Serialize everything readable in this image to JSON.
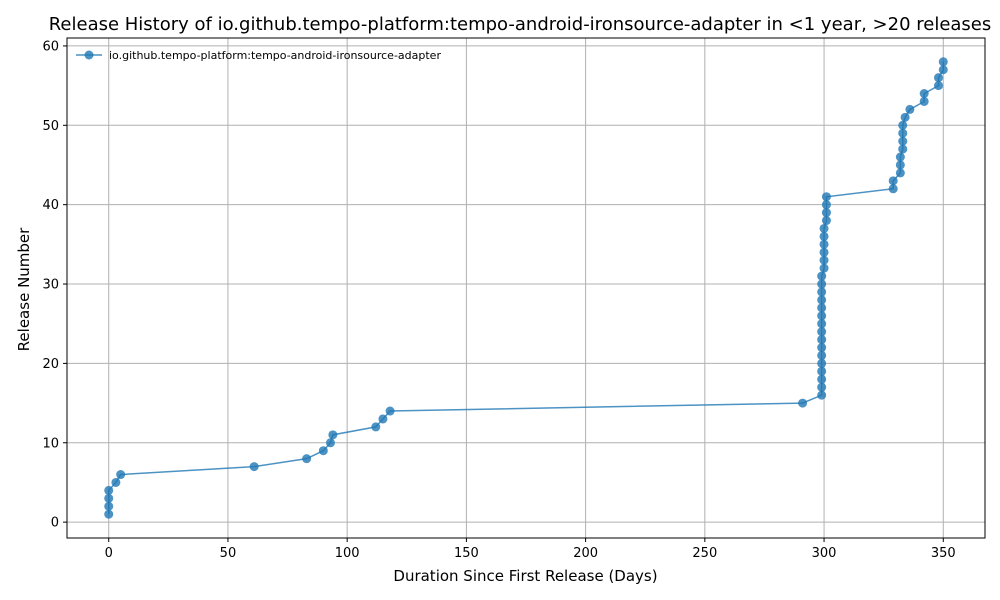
{
  "chart_data": {
    "type": "line",
    "title": "Release History of io.github.tempo-platform:tempo-android-ironsource-adapter in <1 year, >20 releases",
    "xlabel": "Duration Since First Release (Days)",
    "ylabel": "Release Number",
    "xlim": [
      -17.5,
      367.5
    ],
    "ylim": [
      -2,
      61
    ],
    "xticks": [
      0,
      50,
      100,
      150,
      200,
      250,
      300,
      350
    ],
    "yticks": [
      0,
      10,
      20,
      30,
      40,
      50,
      60
    ],
    "grid": true,
    "legend_position": "top-left",
    "series": [
      {
        "name": "io.github.tempo-platform:tempo-android-ironsource-adapter",
        "color": "#1f77b4",
        "marker": "circle",
        "x": [
          0,
          0,
          0,
          0,
          3,
          5,
          61,
          83,
          90,
          93,
          94,
          112,
          115,
          118,
          291,
          299,
          299,
          299,
          299,
          299,
          299,
          299,
          299,
          299,
          299,
          299,
          299,
          299,
          299,
          299,
          299,
          300,
          300,
          300,
          300,
          300,
          300,
          301,
          301,
          301,
          301,
          329,
          329,
          332,
          332,
          332,
          333,
          333,
          333,
          333,
          334,
          336,
          342,
          342,
          348,
          348,
          350,
          350
        ],
        "y": [
          1,
          2,
          3,
          4,
          5,
          6,
          7,
          8,
          9,
          10,
          11,
          12,
          13,
          14,
          15,
          16,
          17,
          18,
          19,
          20,
          21,
          22,
          23,
          24,
          25,
          26,
          27,
          28,
          29,
          30,
          31,
          32,
          33,
          34,
          35,
          36,
          37,
          38,
          39,
          40,
          41,
          42,
          43,
          44,
          45,
          46,
          47,
          48,
          49,
          50,
          51,
          52,
          53,
          54,
          55,
          56,
          57,
          58
        ]
      }
    ]
  }
}
